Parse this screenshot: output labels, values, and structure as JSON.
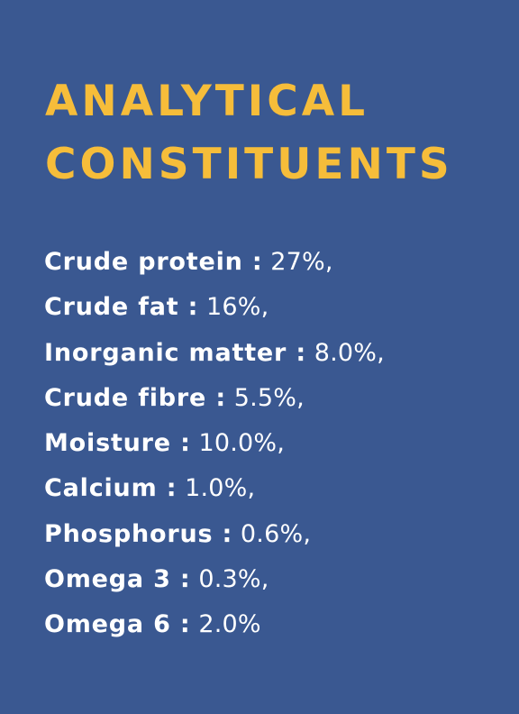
{
  "title": {
    "line1": "ANALYTICAL",
    "line2": "CONSTITUENTS"
  },
  "constituents": [
    {
      "label": "Crude protein :",
      "value": " 27%,"
    },
    {
      "label": "Crude fat :",
      "value": " 16%,"
    },
    {
      "label": "Inorganic matter :",
      "value": " 8.0%,"
    },
    {
      "label": "Crude fibre :",
      "value": " 5.5%,"
    },
    {
      "label": "Moisture :",
      "value": " 10.0%,"
    },
    {
      "label": "Calcium :",
      "value": " 1.0%,"
    },
    {
      "label": "Phosphorus :",
      "value": " 0.6%,"
    },
    {
      "label": "Omega 3 :",
      "value": " 0.3%,"
    },
    {
      "label": "Omega 6 :",
      "value": " 2.0%"
    }
  ],
  "colors": {
    "background": "#3a5891",
    "title": "#f6bd3a",
    "text": "#ffffff"
  }
}
